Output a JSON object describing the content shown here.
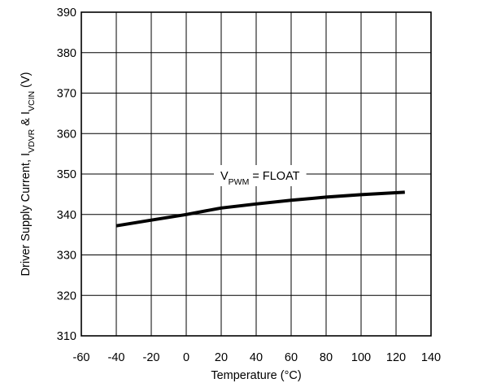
{
  "chart_data": {
    "type": "line",
    "xlabel": "Temperature (°C)",
    "ylabel": {
      "parts": [
        {
          "text": "Driver Supply Current, I",
          "sub": false
        },
        {
          "text": "VDVR",
          "sub": true
        },
        {
          "text": " & I",
          "sub": false
        },
        {
          "text": "VCIN",
          "sub": true
        },
        {
          "text": " (V)",
          "sub": false
        }
      ]
    },
    "xlim": [
      -60,
      140
    ],
    "ylim": [
      310,
      390
    ],
    "xticks": [
      -60,
      -40,
      -20,
      0,
      20,
      40,
      60,
      80,
      100,
      120,
      140
    ],
    "yticks": [
      310,
      320,
      330,
      340,
      350,
      360,
      370,
      380,
      390
    ],
    "grid": true,
    "annotation": {
      "parts": [
        {
          "text": "V",
          "sub": false
        },
        {
          "text": "PWM",
          "sub": true
        },
        {
          "text": " = FLOAT",
          "sub": false
        }
      ]
    },
    "series": [
      {
        "color": "#000000",
        "x": [
          -40,
          -20,
          0,
          20,
          40,
          60,
          80,
          100,
          125
        ],
        "y": [
          337.2,
          338.6,
          340.0,
          341.6,
          342.6,
          343.5,
          344.3,
          344.9,
          345.5
        ]
      }
    ]
  }
}
